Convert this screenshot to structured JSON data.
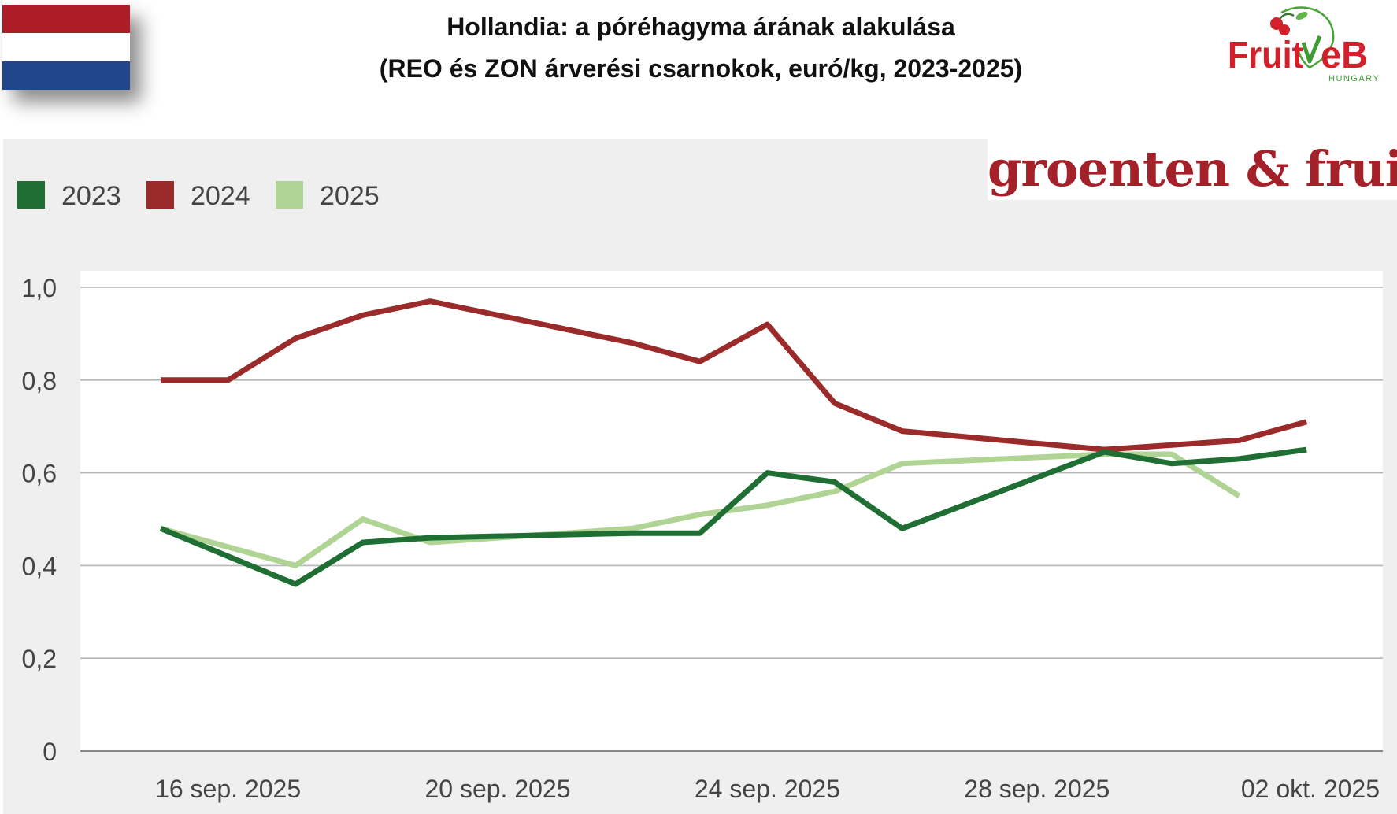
{
  "header": {
    "title": "Hollandia: a póréhagyma árának alakulása",
    "subtitle": "(REO és ZON árverési csarnokok, euró/kg, 2023-2025)"
  },
  "flag": {
    "icon": "netherlands-flag-icon",
    "colors": [
      "#ae1c28",
      "#ffffff",
      "#21468b"
    ]
  },
  "logos": {
    "fruitveb": {
      "icon": "fruitveb-cherry-logo",
      "word_left": "Fruit",
      "word_right": "eB",
      "tagline": "HUNGARY"
    },
    "groenten_fruit": {
      "text": "groenten & fruit"
    }
  },
  "chart_data": {
    "type": "line",
    "x": [
      "15 sep. 2025",
      "16 sep. 2025",
      "17 sep. 2025",
      "18 sep. 2025",
      "19 sep. 2025",
      "20 sep. 2025",
      "21 sep. 2025",
      "22 sep. 2025",
      "23 sep. 2025",
      "24 sep. 2025",
      "25 sep. 2025",
      "26 sep. 2025",
      "27 sep. 2025",
      "28 sep. 2025",
      "29 sep. 2025",
      "30 sep. 2025",
      "01 okt. 2025",
      "02 okt. 2025"
    ],
    "tick_labels": [
      "16 sep. 2025",
      "20 sep. 2025",
      "24 sep. 2025",
      "28 sep. 2025",
      "02 okt. 2025"
    ],
    "yticks": [
      "0",
      "0,2",
      "0,4",
      "0,6",
      "0,8",
      "1,0"
    ],
    "ylim": [
      0,
      1.0
    ],
    "grid": true,
    "legend": "top-left",
    "series": [
      {
        "name": "2023",
        "color": "#1f6f34",
        "values": [
          0.48,
          null,
          0.36,
          0.45,
          0.46,
          null,
          null,
          0.47,
          0.47,
          0.6,
          0.58,
          0.48,
          null,
          null,
          0.645,
          0.62,
          0.63,
          0.65
        ]
      },
      {
        "name": "2024",
        "color": "#9b2a2a",
        "values": [
          0.8,
          0.8,
          0.89,
          0.94,
          0.97,
          null,
          null,
          0.88,
          0.84,
          0.92,
          0.75,
          0.69,
          null,
          null,
          0.65,
          null,
          0.67,
          0.71
        ]
      },
      {
        "name": "2025",
        "color": "#b0d494",
        "values": [
          0.48,
          null,
          0.4,
          0.5,
          0.45,
          null,
          null,
          0.48,
          0.51,
          0.53,
          0.56,
          0.62,
          null,
          null,
          0.64,
          0.64,
          0.55,
          null
        ]
      }
    ]
  }
}
